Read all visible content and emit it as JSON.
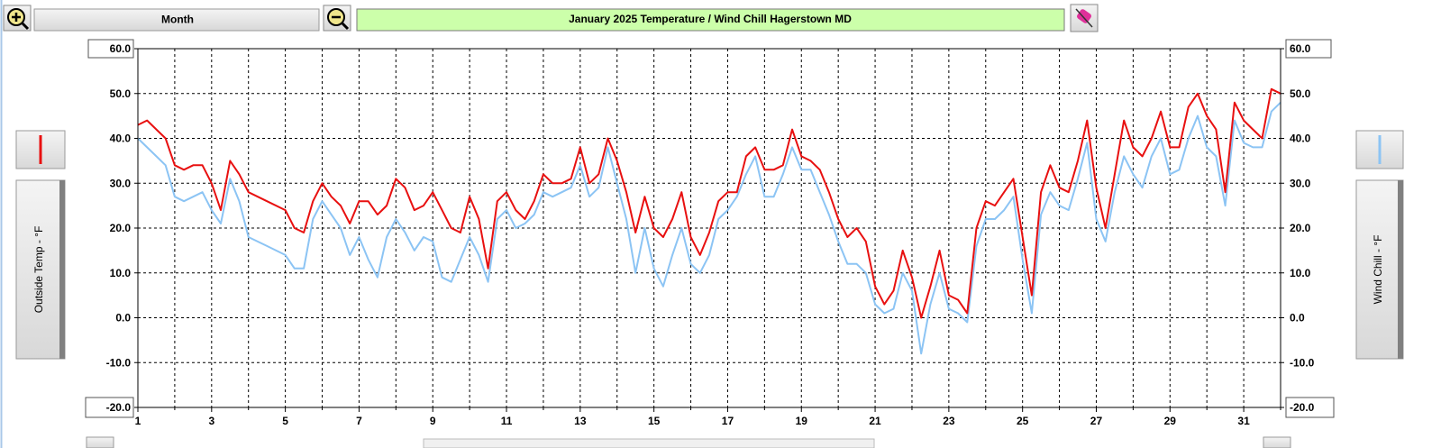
{
  "controls": {
    "period": "Month"
  },
  "chart_data": {
    "type": "line",
    "title": "January 2025  Temperature  / Wind Chill   Hagerstown MD",
    "ylabel": "Outside Temp - °F",
    "y2label": "Wind Chill - °F",
    "xlim": [
      1,
      32
    ],
    "xticks": [
      1,
      3,
      5,
      7,
      9,
      11,
      13,
      15,
      17,
      19,
      21,
      23,
      25,
      27,
      29,
      31
    ],
    "xminorticks": [
      2,
      4,
      6,
      8,
      10,
      12,
      14,
      16,
      18,
      20,
      22,
      24,
      26,
      28,
      30,
      32
    ],
    "ylim": [
      -20,
      60
    ],
    "yticks": [
      {
        "value": 60,
        "label": "60.0"
      },
      {
        "value": 50,
        "label": "50.0"
      },
      {
        "value": 40,
        "label": "40.0"
      },
      {
        "value": 30,
        "label": "30.0"
      },
      {
        "value": 20,
        "label": "20.0"
      },
      {
        "value": 10,
        "label": "10.0"
      },
      {
        "value": 0,
        "label": "0.0"
      },
      {
        "value": -10,
        "label": "-10.0"
      },
      {
        "value": -20,
        "label": "-20.0"
      }
    ],
    "y2lim": [
      -20,
      60
    ],
    "y2ticks": [
      {
        "value": 60,
        "label": "60.0"
      },
      {
        "value": 50,
        "label": "50.0"
      },
      {
        "value": 40,
        "label": "40.0"
      },
      {
        "value": 30,
        "label": "30.0"
      },
      {
        "value": 20,
        "label": "20.0"
      },
      {
        "value": 10,
        "label": "10.0"
      },
      {
        "value": 0,
        "label": "0.0"
      },
      {
        "value": -10,
        "label": "-10.0"
      },
      {
        "value": -20,
        "label": "-20.0"
      }
    ],
    "grid": true,
    "x": [
      1,
      1.25,
      1.5,
      1.75,
      2,
      2.25,
      2.5,
      2.75,
      3,
      3.25,
      3.5,
      3.75,
      4,
      4.5,
      5,
      5.25,
      5.5,
      5.75,
      6,
      6.25,
      6.5,
      6.75,
      7,
      7.25,
      7.5,
      7.75,
      8,
      8.25,
      8.5,
      8.75,
      9,
      9.25,
      9.5,
      9.75,
      10,
      10.25,
      10.5,
      10.75,
      11,
      11.25,
      11.5,
      11.75,
      12,
      12.25,
      12.5,
      12.75,
      13,
      13.25,
      13.5,
      13.75,
      14,
      14.25,
      14.5,
      14.75,
      15,
      15.25,
      15.5,
      15.75,
      16,
      16.25,
      16.5,
      16.75,
      17,
      17.25,
      17.5,
      17.75,
      18,
      18.25,
      18.5,
      18.75,
      19,
      19.25,
      19.5,
      19.75,
      20,
      20.25,
      20.5,
      20.75,
      21,
      21.25,
      21.5,
      21.75,
      22,
      22.25,
      22.5,
      22.75,
      23,
      23.25,
      23.5,
      23.75,
      24,
      24.25,
      24.5,
      24.75,
      25,
      25.25,
      25.5,
      25.75,
      26,
      26.25,
      26.5,
      26.75,
      27,
      27.25,
      27.5,
      27.75,
      28,
      28.25,
      28.5,
      28.75,
      29,
      29.25,
      29.5,
      29.75,
      30,
      30.25,
      30.5,
      30.75,
      31,
      31.25,
      31.5,
      31.75,
      32
    ],
    "series": [
      {
        "name": "Outside Temp",
        "color": "#e81010",
        "values": [
          43,
          44,
          42,
          40,
          34,
          33,
          34,
          34,
          30,
          24,
          35,
          32,
          28,
          26,
          24,
          20,
          19,
          26,
          30,
          27,
          25,
          21,
          26,
          26,
          23,
          25,
          31,
          29,
          24,
          25,
          28,
          24,
          20,
          19,
          27,
          22,
          11,
          26,
          28,
          24,
          22,
          26,
          32,
          30,
          30,
          31,
          38,
          30,
          32,
          40,
          35,
          28,
          19,
          27,
          20,
          18,
          22,
          28,
          18,
          14,
          19,
          26,
          28,
          28,
          36,
          38,
          33,
          33,
          34,
          42,
          36,
          35,
          33,
          28,
          22,
          18,
          20,
          17,
          7,
          3,
          6,
          15,
          9,
          0,
          7,
          15,
          5,
          4,
          1,
          20,
          26,
          25,
          28,
          31,
          18,
          5,
          28,
          34,
          29,
          28,
          35,
          44,
          29,
          20,
          32,
          44,
          38,
          36,
          40,
          46,
          38,
          38,
          47,
          50,
          45,
          42,
          28,
          48,
          44,
          42,
          40,
          51,
          50
        ]
      },
      {
        "name": "Wind Chill",
        "color": "#8cc4f4",
        "axis": "y2",
        "values": [
          40,
          38,
          36,
          34,
          27,
          26,
          27,
          28,
          24,
          21,
          31,
          26,
          18,
          16,
          14,
          11,
          11,
          22,
          26,
          23,
          20,
          14,
          18,
          13,
          9,
          18,
          22,
          19,
          15,
          18,
          17,
          9,
          8,
          13,
          18,
          14,
          8,
          22,
          24,
          20,
          21,
          23,
          28,
          27,
          28,
          29,
          34,
          27,
          29,
          38,
          30,
          22,
          10,
          20,
          11,
          7,
          14,
          20,
          12,
          10,
          14,
          22,
          24,
          27,
          32,
          36,
          27,
          27,
          32,
          38,
          33,
          33,
          28,
          23,
          17,
          12,
          12,
          10,
          3,
          1,
          2,
          10,
          6,
          -8,
          3,
          10,
          2,
          1,
          -1,
          16,
          22,
          22,
          24,
          27,
          13,
          1,
          23,
          28,
          25,
          24,
          31,
          39,
          22,
          17,
          28,
          36,
          32,
          29,
          36,
          40,
          32,
          33,
          40,
          45,
          38,
          36,
          25,
          44,
          39,
          38,
          38,
          46,
          48
        ]
      }
    ]
  }
}
